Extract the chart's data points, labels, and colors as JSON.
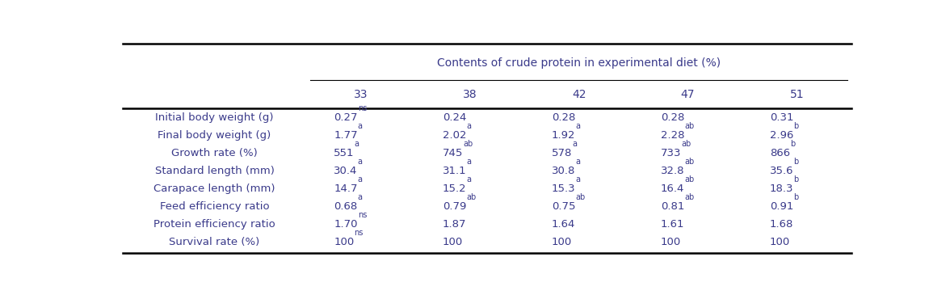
{
  "title": "Contents of crude protein in experimental diet (%)",
  "columns": [
    "33",
    "38",
    "42",
    "47",
    "51"
  ],
  "rows": [
    {
      "label": "Initial body weight (g)",
      "values": [
        "0.27",
        "0.24",
        "0.28",
        "0.28",
        "0.31"
      ],
      "superscripts": [
        "ns",
        "",
        "",
        "",
        ""
      ]
    },
    {
      "label": "Final body weight (g)",
      "values": [
        "1.77",
        "2.02",
        "1.92",
        "2.28",
        "2.96"
      ],
      "superscripts": [
        "a",
        "a",
        "a",
        "ab",
        "b"
      ]
    },
    {
      "label": "Growth rate (%)",
      "values": [
        "551",
        "745",
        "578",
        "733",
        "866"
      ],
      "superscripts": [
        "a",
        "ab",
        "a",
        "ab",
        "b"
      ]
    },
    {
      "label": "Standard length (mm)",
      "values": [
        "30.4",
        "31.1",
        "30.8",
        "32.8",
        "35.6"
      ],
      "superscripts": [
        "a",
        "a",
        "a",
        "ab",
        "b"
      ]
    },
    {
      "label": "Carapace length (mm)",
      "values": [
        "14.7",
        "15.2",
        "15.3",
        "16.4",
        "18.3"
      ],
      "superscripts": [
        "a",
        "a",
        "a",
        "ab",
        "b"
      ]
    },
    {
      "label": "Feed efficiency ratio",
      "values": [
        "0.68",
        "0.79",
        "0.75",
        "0.81",
        "0.91"
      ],
      "superscripts": [
        "a",
        "ab",
        "ab",
        "ab",
        "b"
      ]
    },
    {
      "label": "Protein efficiency ratio",
      "values": [
        "1.70",
        "1.87",
        "1.64",
        "1.61",
        "1.68"
      ],
      "superscripts": [
        "ns",
        "",
        "",
        "",
        ""
      ]
    },
    {
      "label": "Survival rate (%)",
      "values": [
        "100",
        "100",
        "100",
        "100",
        "100"
      ],
      "superscripts": [
        "ns",
        "",
        "",
        "",
        ""
      ]
    }
  ],
  "text_color": "#3a3a8a",
  "background_color": "#ffffff",
  "font_size": 9.5,
  "sup_font_size": 7.0,
  "header_font_size": 10.0
}
